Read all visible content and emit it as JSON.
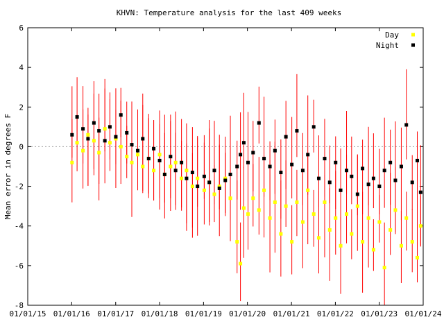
{
  "chart_data": {
    "type": "scatter",
    "title": "KHVN: Temperature analysis for the last 409 weeks",
    "xlabel": "",
    "ylabel": "Mean error in degrees F",
    "x_ticks": [
      "01/01/15",
      "01/01/16",
      "01/01/17",
      "01/01/18",
      "01/01/19",
      "01/01/20",
      "01/01/21",
      "01/01/22",
      "01/01/23",
      "01/01/24"
    ],
    "y_ticks": [
      "6",
      "4",
      "2",
      "0",
      "-2",
      "-4",
      "-6",
      "-8"
    ],
    "xlim": [
      "2015-01-01",
      "2024-01-01"
    ],
    "ylim": [
      -8,
      6
    ],
    "grid": false,
    "zero_line": true,
    "legend_position": "top-right",
    "colors": {
      "day": "#ffff00",
      "night": "#000000",
      "error_bar": "#ff0000",
      "zero_line": "#a0a0a0"
    },
    "series": [
      {
        "name": "Day",
        "x": [
          "2016-01-04",
          "2016-02-15",
          "2016-04-04",
          "2016-05-16",
          "2016-07-04",
          "2016-08-15",
          "2016-10-03",
          "2016-11-14",
          "2017-01-02",
          "2017-02-13",
          "2017-04-03",
          "2017-05-15",
          "2017-07-03",
          "2017-08-14",
          "2017-10-02",
          "2017-11-13",
          "2018-01-01",
          "2018-02-12",
          "2018-04-02",
          "2018-05-14",
          "2018-07-02",
          "2018-08-13",
          "2018-10-01",
          "2018-11-12",
          "2019-01-07",
          "2019-02-18",
          "2019-04-01",
          "2019-05-13",
          "2019-07-01",
          "2019-08-12",
          "2019-10-07",
          "2019-11-04",
          "2019-12-02",
          "2020-01-06",
          "2020-02-17",
          "2020-04-06",
          "2020-05-18",
          "2020-07-06",
          "2020-08-17",
          "2020-10-05",
          "2020-11-16",
          "2021-01-04",
          "2021-02-15",
          "2021-04-05",
          "2021-05-17",
          "2021-07-05",
          "2021-08-16",
          "2021-10-04",
          "2021-11-15",
          "2022-01-03",
          "2022-02-14",
          "2022-04-04",
          "2022-05-16",
          "2022-07-04",
          "2022-08-15",
          "2022-10-03",
          "2022-11-14",
          "2023-01-02",
          "2023-02-13",
          "2023-04-03",
          "2023-05-15",
          "2023-07-03",
          "2023-08-14",
          "2023-10-02",
          "2023-11-13",
          "2023-12-11"
        ],
        "y": [
          -0.8,
          0.2,
          -0.2,
          0.6,
          0.3,
          -0.3,
          0.9,
          0.2,
          0.4,
          0.0,
          -0.5,
          -0.8,
          -0.4,
          -1.0,
          -0.6,
          -1.2,
          -0.4,
          -1.4,
          -1.0,
          -0.8,
          -1.6,
          -1.2,
          -2.0,
          -1.6,
          -2.2,
          -1.8,
          -2.4,
          -2.0,
          -1.6,
          -2.6,
          -4.8,
          -5.9,
          -3.1,
          -3.4,
          -2.6,
          -3.2,
          -2.2,
          -3.6,
          -2.8,
          -4.4,
          -3.0,
          -4.8,
          -2.8,
          -3.8,
          -2.2,
          -3.4,
          -4.6,
          -2.8,
          -4.2,
          -3.6,
          -5.0,
          -3.4,
          -4.4,
          -3.0,
          -4.8,
          -3.6,
          -5.2,
          -3.8,
          -6.1,
          -4.2,
          -3.2,
          -5.0,
          -3.6,
          -4.8,
          -5.6,
          -4.0
        ]
      },
      {
        "name": "Night",
        "x": [
          "2016-01-04",
          "2016-02-15",
          "2016-04-04",
          "2016-05-16",
          "2016-07-04",
          "2016-08-15",
          "2016-10-03",
          "2016-11-14",
          "2017-01-02",
          "2017-02-13",
          "2017-04-03",
          "2017-05-15",
          "2017-07-03",
          "2017-08-14",
          "2017-10-02",
          "2017-11-13",
          "2018-01-01",
          "2018-02-12",
          "2018-04-02",
          "2018-05-14",
          "2018-07-02",
          "2018-08-13",
          "2018-10-01",
          "2018-11-12",
          "2019-01-07",
          "2019-02-18",
          "2019-04-01",
          "2019-05-13",
          "2019-07-01",
          "2019-08-12",
          "2019-10-07",
          "2019-11-04",
          "2019-12-02",
          "2020-01-06",
          "2020-02-17",
          "2020-04-06",
          "2020-05-18",
          "2020-07-06",
          "2020-08-17",
          "2020-10-05",
          "2020-11-16",
          "2021-01-04",
          "2021-02-15",
          "2021-04-05",
          "2021-05-17",
          "2021-07-05",
          "2021-08-16",
          "2021-10-04",
          "2021-11-15",
          "2022-01-03",
          "2022-02-14",
          "2022-04-04",
          "2022-05-16",
          "2022-07-04",
          "2022-08-15",
          "2022-10-03",
          "2022-11-14",
          "2023-01-02",
          "2023-02-13",
          "2023-04-03",
          "2023-05-15",
          "2023-07-03",
          "2023-08-14",
          "2023-10-02",
          "2023-11-13",
          "2023-12-11"
        ],
        "y": [
          0.6,
          1.5,
          0.9,
          0.4,
          1.2,
          0.8,
          0.3,
          1.0,
          0.5,
          1.6,
          0.7,
          0.1,
          -0.2,
          0.4,
          -0.6,
          -0.1,
          -0.7,
          -1.4,
          -0.5,
          -1.2,
          -0.8,
          -1.6,
          -1.3,
          -2.0,
          -1.5,
          -1.8,
          -1.2,
          -2.1,
          -1.7,
          -1.4,
          -1.0,
          -0.4,
          0.2,
          -0.8,
          -0.3,
          1.2,
          -0.6,
          -1.0,
          -0.2,
          -1.3,
          0.5,
          -0.9,
          0.8,
          -1.2,
          -0.4,
          1.0,
          -1.6,
          -0.6,
          -1.8,
          -0.8,
          -2.2,
          -1.2,
          -1.5,
          -2.4,
          -1.1,
          -1.9,
          -1.6,
          -2.0,
          -1.2,
          -0.8,
          -1.7,
          -1.0,
          1.1,
          -1.8,
          -0.7,
          -2.3
        ]
      }
    ]
  }
}
